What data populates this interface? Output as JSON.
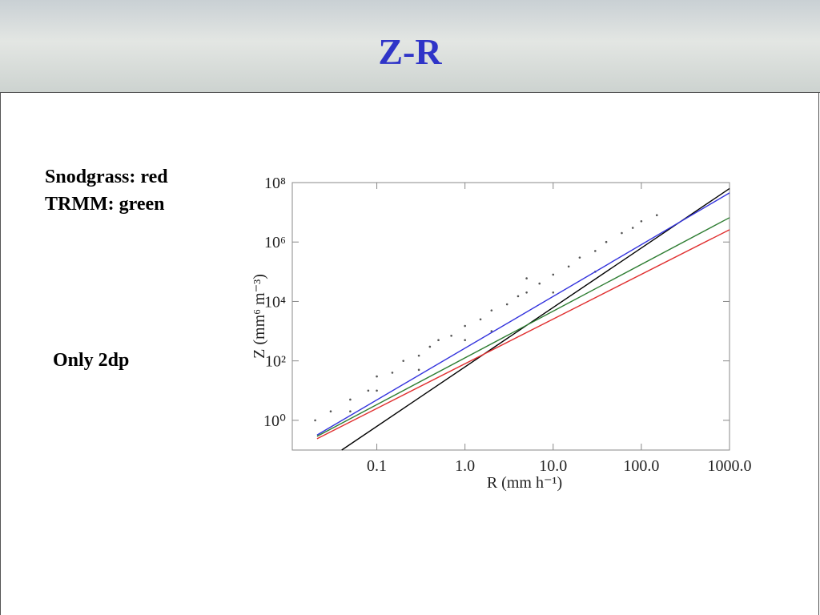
{
  "slide": {
    "title": "Z-R",
    "notes": [
      "Snodgrass: red",
      "TRMM: green"
    ],
    "remark": "Only 2dp"
  },
  "chart_data": {
    "type": "scatter-lines",
    "log_x": true,
    "log_y": true,
    "x_label": "R (mm h⁻¹)",
    "y_label": "Z (mm⁶ m⁻³)",
    "xlim": [
      0.011,
      1000
    ],
    "ylim": [
      0.1,
      100000000
    ],
    "xticks": [
      0.1,
      {
        "value": 1,
        "label": "1.0"
      },
      {
        "value": 10,
        "label": "10.0"
      },
      {
        "value": 100,
        "label": "100.0"
      },
      {
        "value": 1000,
        "label": "1000.0"
      }
    ],
    "yticks": [
      {
        "value": 1,
        "label": "10⁰"
      },
      {
        "value": 100,
        "label": "10²"
      },
      {
        "value": 10000,
        "label": "10⁴"
      },
      {
        "value": 1000000,
        "label": "10⁶"
      },
      {
        "value": 100000000,
        "label": "10⁸"
      }
    ],
    "points": {
      "color": "#555555",
      "x": [
        0.02,
        0.03,
        0.05,
        0.08,
        0.1,
        0.15,
        0.2,
        0.3,
        0.4,
        0.5,
        0.7,
        1,
        1.5,
        2,
        3,
        4,
        5,
        7,
        10,
        15,
        20,
        30,
        40,
        60,
        80,
        100,
        150,
        0.05,
        0.3,
        2,
        10,
        30,
        5,
        1,
        0.1
      ],
      "values": [
        1,
        2,
        5,
        10,
        30,
        40,
        100,
        150,
        300,
        500,
        700,
        1500,
        2500,
        5000,
        8000,
        15000,
        20000,
        40000,
        80000,
        150000,
        300000,
        500000,
        1000000,
        2000000,
        3000000,
        5000000,
        8000000,
        2,
        50,
        1000,
        20000,
        100000,
        60000,
        500,
        10
      ]
    },
    "series": [
      {
        "color": "#000000",
        "x": [
          0.04,
          1000
        ],
        "values": [
          0.1,
          63000000
        ]
      },
      {
        "color": "#3333dd",
        "x": [
          0.021,
          1000
        ],
        "values": [
          0.32,
          45000000
        ]
      },
      {
        "color": "#2e7d32",
        "x": [
          0.021,
          1000
        ],
        "values": [
          0.29,
          6600000
        ]
      },
      {
        "color": "#e03030",
        "x": [
          0.021,
          1000
        ],
        "values": [
          0.24,
          2600000
        ]
      }
    ]
  }
}
